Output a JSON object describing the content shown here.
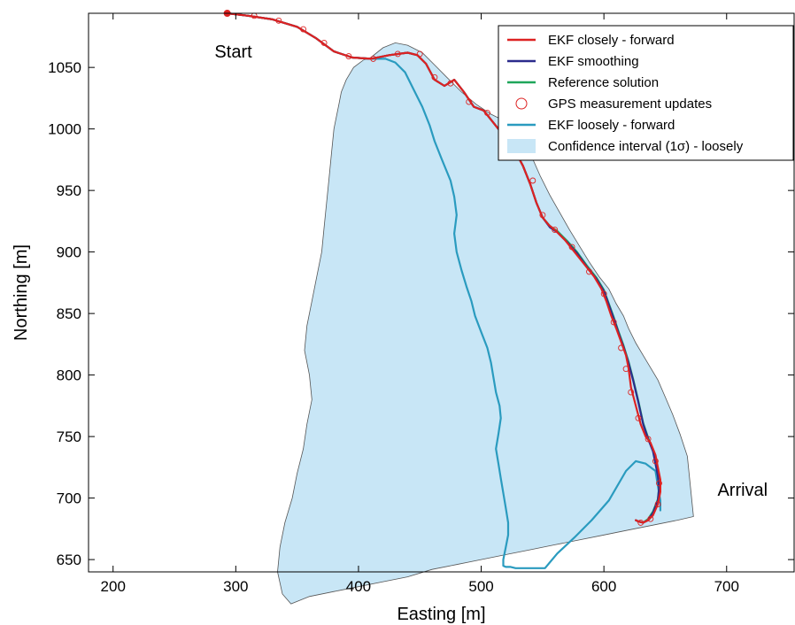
{
  "chart_data": {
    "type": "line",
    "xlabel": "Easting [m]",
    "ylabel": "Northing [m]",
    "xlim": [
      180,
      755
    ],
    "ylim": [
      640,
      1094
    ],
    "xticks": [
      200,
      300,
      400,
      500,
      600,
      700
    ],
    "yticks": [
      650,
      700,
      750,
      800,
      850,
      900,
      950,
      1000,
      1050
    ],
    "grid": false,
    "legend_position": "top-right",
    "annotations": [
      {
        "text": "Start",
        "x": 298,
        "y": 1058
      },
      {
        "text": "Arrival",
        "x": 713,
        "y": 702
      }
    ],
    "series": [
      {
        "name": "EKF closely - forward",
        "kind": "line",
        "color": "#dd2222",
        "x": [
          293,
          310,
          330,
          350,
          365,
          380,
          395,
          410,
          425,
          440,
          448,
          455,
          462,
          470,
          478,
          486,
          494,
          502,
          510,
          518,
          526,
          534,
          540,
          545,
          550,
          555,
          560,
          568,
          576,
          584,
          592,
          598,
          602,
          606,
          610,
          614,
          618,
          620,
          622,
          626,
          630,
          634,
          638,
          642,
          644,
          646,
          646,
          644,
          640,
          636,
          632,
          628,
          626
        ],
        "y": [
          1094,
          1092,
          1089,
          1083,
          1074,
          1063,
          1058,
          1057,
          1060,
          1062,
          1060,
          1053,
          1040,
          1035,
          1040,
          1030,
          1018,
          1015,
          1005,
          995,
          985,
          970,
          955,
          940,
          928,
          922,
          918,
          910,
          900,
          890,
          880,
          870,
          860,
          848,
          838,
          827,
          816,
          806,
          790,
          775,
          760,
          750,
          745,
          735,
          725,
          715,
          705,
          695,
          686,
          682,
          680,
          681,
          682
        ]
      },
      {
        "name": "EKF smoothing",
        "kind": "line",
        "color": "#2b2b8c",
        "x": [
          293,
          310,
          330,
          350,
          365,
          380,
          395,
          410,
          425,
          440,
          448,
          455,
          462,
          470,
          478,
          486,
          494,
          502,
          510,
          518,
          526,
          534,
          540,
          545,
          550,
          556,
          562,
          570,
          578,
          586,
          594,
          600,
          604,
          608,
          612,
          616,
          620,
          624,
          628,
          632,
          636,
          640,
          642,
          644,
          645,
          644,
          640,
          636,
          632,
          628,
          626
        ],
        "y": [
          1094,
          1092,
          1089,
          1083,
          1074,
          1063,
          1058,
          1057,
          1060,
          1062,
          1060,
          1053,
          1040,
          1035,
          1040,
          1030,
          1018,
          1015,
          1005,
          995,
          985,
          970,
          955,
          940,
          928,
          920,
          916,
          908,
          899,
          888,
          878,
          868,
          857,
          846,
          834,
          823,
          810,
          795,
          778,
          760,
          748,
          738,
          728,
          718,
          708,
          698,
          688,
          682,
          680,
          681,
          682
        ]
      },
      {
        "name": "Reference solution",
        "kind": "line",
        "color": "#1fa65a",
        "x": [
          293,
          310,
          330,
          350,
          365,
          380,
          395,
          410,
          425,
          440,
          448,
          455,
          462,
          470,
          478,
          486,
          494,
          502,
          510,
          518,
          526,
          534,
          540,
          545,
          550,
          556,
          562,
          570,
          578,
          586,
          594,
          600,
          604,
          608,
          612,
          616,
          620,
          624,
          628,
          632,
          636,
          640,
          642,
          644,
          645,
          644,
          640,
          636,
          632,
          628,
          626
        ],
        "y": [
          1094,
          1092,
          1089,
          1083,
          1074,
          1063,
          1058,
          1057,
          1060,
          1062,
          1060,
          1053,
          1040,
          1035,
          1040,
          1030,
          1018,
          1015,
          1005,
          995,
          985,
          970,
          955,
          940,
          928,
          921,
          917,
          909,
          900,
          889,
          879,
          869,
          858,
          847,
          835,
          824,
          811,
          796,
          779,
          761,
          749,
          739,
          729,
          719,
          709,
          699,
          689,
          683,
          680,
          681,
          682
        ]
      },
      {
        "name": "GPS measurement updates",
        "kind": "markers",
        "color": "#dd2222",
        "x": [
          293,
          315,
          335,
          355,
          372,
          392,
          412,
          432,
          450,
          462,
          475,
          490,
          505,
          520,
          532,
          542,
          550,
          560,
          574,
          588,
          600,
          608,
          614,
          618,
          622,
          628,
          636,
          642,
          645,
          644,
          638,
          630
        ],
        "y": [
          1094,
          1092,
          1088,
          1081,
          1070,
          1059,
          1057,
          1061,
          1061,
          1042,
          1037,
          1022,
          1013,
          998,
          980,
          958,
          930,
          918,
          904,
          884,
          866,
          843,
          822,
          805,
          786,
          765,
          748,
          730,
          712,
          695,
          683,
          680
        ]
      },
      {
        "name": "EKF loosely - forward",
        "kind": "line",
        "color": "#2a9bbf",
        "x": [
          293,
          310,
          330,
          350,
          365,
          380,
          395,
          410,
          422,
          430,
          438,
          445,
          452,
          458,
          462,
          468,
          475,
          478,
          480,
          478,
          480,
          484,
          488,
          492,
          495,
          500,
          505,
          508,
          510,
          512,
          515,
          516,
          514,
          512,
          514,
          516,
          518,
          520,
          522,
          522,
          520,
          518,
          518,
          520,
          524,
          528,
          532,
          536,
          540,
          544,
          548,
          550,
          552,
          562,
          576,
          590,
          604,
          618,
          626,
          634,
          642,
          644,
          646,
          646
        ],
        "y": [
          1094,
          1092,
          1089,
          1083,
          1074,
          1063,
          1058,
          1057,
          1057,
          1054,
          1046,
          1032,
          1018,
          1003,
          990,
          975,
          958,
          945,
          930,
          915,
          900,
          885,
          872,
          860,
          848,
          835,
          822,
          810,
          798,
          786,
          775,
          765,
          752,
          740,
          728,
          716,
          704,
          692,
          680,
          670,
          660,
          650,
          645,
          644,
          644,
          643,
          643,
          643,
          643,
          643,
          643,
          643,
          643,
          655,
          668,
          682,
          698,
          722,
          730,
          728,
          722,
          710,
          698,
          690
        ]
      },
      {
        "name": "Confidence interval (1σ) - loosely",
        "kind": "area",
        "color": "#c8e6f6",
        "edge_color": "#555555",
        "x": [
          410,
          420,
          430,
          440,
          452,
          462,
          472,
          484,
          496,
          508,
          520,
          530,
          536,
          540,
          548,
          556,
          564,
          572,
          580,
          588,
          596,
          604,
          610,
          616,
          620,
          626,
          632,
          638,
          644,
          650,
          656,
          662,
          668,
          673,
          660,
          640,
          620,
          600,
          580,
          560,
          540,
          520,
          500,
          480,
          460,
          440,
          420,
          400,
          380,
          360,
          345,
          338,
          334,
          336,
          340,
          346,
          350,
          355,
          358,
          362,
          360,
          356,
          358,
          362,
          366,
          370,
          372,
          374,
          376,
          378,
          380,
          382,
          384,
          386,
          390,
          396,
          404,
          410
        ],
        "y": [
          1058,
          1066,
          1070,
          1068,
          1062,
          1052,
          1042,
          1030,
          1020,
          1012,
          1006,
          998,
          992,
          980,
          962,
          946,
          932,
          918,
          905,
          892,
          880,
          870,
          858,
          848,
          838,
          826,
          816,
          806,
          796,
          782,
          768,
          752,
          734,
          685,
          682,
          678,
          674,
          670,
          666,
          662,
          658,
          654,
          650,
          646,
          642,
          636,
          632,
          628,
          624,
          620,
          614,
          622,
          640,
          660,
          680,
          700,
          720,
          740,
          760,
          780,
          800,
          820,
          840,
          860,
          880,
          900,
          920,
          940,
          960,
          980,
          1000,
          1010,
          1020,
          1030,
          1040,
          1050,
          1056,
          1058
        ]
      }
    ]
  }
}
